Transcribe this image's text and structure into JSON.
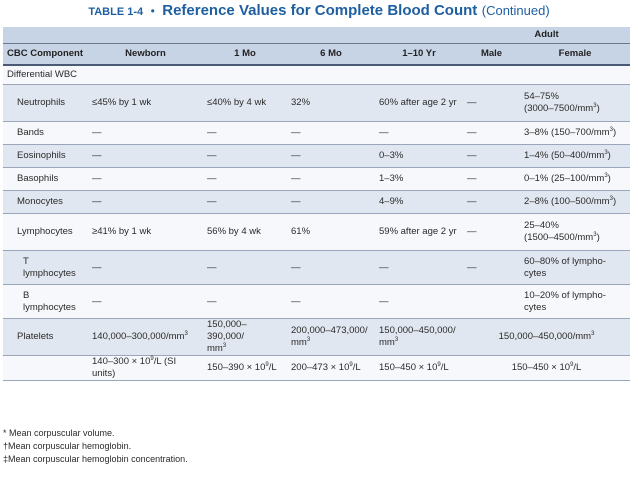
{
  "title": {
    "number": "TABLE 1-4",
    "bullet": "•",
    "main": "Reference Values for Complete Blood Count",
    "continued": "(Continued)"
  },
  "columns": {
    "component": "CBC Component",
    "newborn": "Newborn",
    "mo1": "1 Mo",
    "mo6": "6 Mo",
    "yr": "1–10 Yr",
    "adult": "Adult",
    "male": "Male",
    "female": "Female"
  },
  "section": "Differential WBC",
  "rows": [
    {
      "component": "Neutrophils",
      "newborn": "≤45% by 1 wk",
      "mo1": "≤40% by 4 wk",
      "mo6": "32%",
      "yr": "60% after age 2 yr",
      "male": "—",
      "female_a": "54–75%",
      "female_b": "(3000–7500/mm",
      "female_sup": "3",
      "female_c": ")"
    },
    {
      "component": "Bands",
      "newborn": "—",
      "mo1": "—",
      "mo6": "—",
      "yr": "—",
      "male": "—",
      "female_a": "3–8% (150–700/mm",
      "female_sup": "3",
      "female_c": ")"
    },
    {
      "component": "Eosinophils",
      "newborn": "—",
      "mo1": "—",
      "mo6": "—",
      "yr": "0–3%",
      "male": "—",
      "female_a": "1–4% (50–400/mm",
      "female_sup": "3",
      "female_c": ")"
    },
    {
      "component": "Basophils",
      "newborn": "—",
      "mo1": "—",
      "mo6": "—",
      "yr": "1–3%",
      "male": "—",
      "female_a": "0–1% (25–100/mm",
      "female_sup": "3",
      "female_c": ")"
    },
    {
      "component": "Monocytes",
      "newborn": "—",
      "mo1": "—",
      "mo6": "—",
      "yr": "4–9%",
      "male": "—",
      "female_a": "2–8% (100–500/mm",
      "female_sup": "3",
      "female_c": ")"
    },
    {
      "component": "Lymphocytes",
      "newborn": "≥41% by 1 wk",
      "mo1": "56% by 4 wk",
      "mo6": "61%",
      "yr": "59% after age 2 yr",
      "male": "—",
      "female_a": "25–40%",
      "female_b": "(1500–4500/mm",
      "female_sup": "3",
      "female_c": ")"
    },
    {
      "component": "T lymphocytes",
      "newborn": "—",
      "mo1": "—",
      "mo6": "—",
      "yr": "—",
      "male": "—",
      "female_a": "60–80% of lympho-",
      "female_b": "cytes"
    },
    {
      "component": "B lymphocytes",
      "newborn": "—",
      "mo1": "—",
      "mo6": "—",
      "yr": "—",
      "male": "",
      "female_a": "10–20% of lympho-",
      "female_b": "cytes"
    }
  ],
  "platelets": {
    "label": "Platelets",
    "newborn": "140,000–300,000/mm",
    "mo1_a": "150,000–390,000/",
    "mo1_b": "mm",
    "mo6_a": "200,000–473,000/",
    "mo6_b": "mm",
    "yr_a": "150,000–450,000/",
    "yr_b": "mm",
    "adult": "150,000–450,000/mm",
    "sup": "3"
  },
  "si_row": {
    "newborn_a": "140–300 × 10",
    "newborn_b": "/L (SI units)",
    "mo1_a": "150–390 × 10",
    "mo1_b": "/L",
    "mo6_a": "200–473 × 10",
    "mo6_b": "/L",
    "yr_a": "150–450 × 10",
    "yr_b": "/L",
    "adult_a": "150–450 × 10",
    "adult_b": "/L",
    "sup": "9"
  },
  "footnotes": [
    "* Mean corpuscular volume.",
    "†Mean corpuscular hemoglobin.",
    "‡Mean corpuscular hemoglobin concentration."
  ],
  "colors": {
    "title": "#1e5fa0",
    "header_bg": "#c7d4e6",
    "row_shaded": "#e1e7f0",
    "row_light": "#f6f8fb"
  }
}
